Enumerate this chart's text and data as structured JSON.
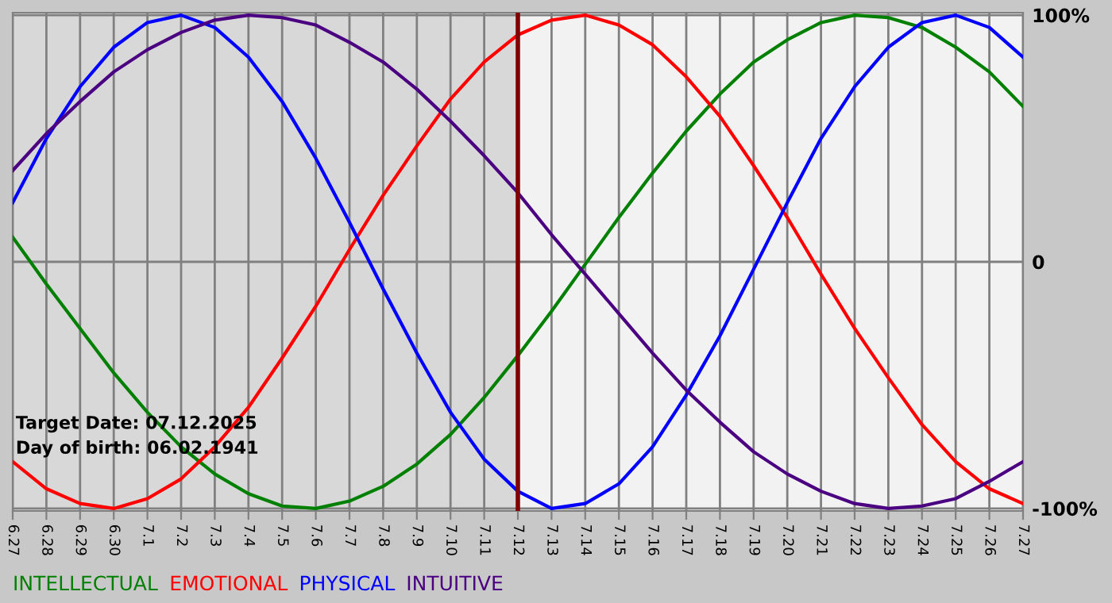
{
  "chart_data": {
    "type": "line",
    "categories": [
      "6.27",
      "6.28",
      "6.29",
      "6.30",
      "7.1",
      "7.2",
      "7.3",
      "7.4",
      "7.5",
      "7.6",
      "7.7",
      "7.8",
      "7.9",
      "7.10",
      "7.11",
      "7.12",
      "7.13",
      "7.14",
      "7.15",
      "7.16",
      "7.17",
      "7.18",
      "7.19",
      "7.20",
      "7.21",
      "7.22",
      "7.23",
      "7.24",
      "7.25",
      "7.26",
      "7.27"
    ],
    "series": [
      {
        "name": "INTELLECTUAL",
        "color": "#008000",
        "values": [
          10,
          -9,
          -27,
          -45,
          -61,
          -75,
          -86,
          -94,
          -99,
          -100,
          -97,
          -91,
          -82,
          -70,
          -55,
          -38,
          -20,
          -1,
          18,
          36,
          53,
          68,
          81,
          90,
          97,
          100,
          99,
          95,
          87,
          77,
          63
        ]
      },
      {
        "name": "EMOTIONAL",
        "color": "#ff0000",
        "values": [
          -81,
          -92,
          -98,
          -100,
          -96,
          -88,
          -75,
          -59,
          -39,
          -18,
          5,
          27,
          47,
          66,
          81,
          92,
          98,
          100,
          96,
          88,
          75,
          59,
          39,
          18,
          -5,
          -27,
          -47,
          -66,
          -81,
          -92,
          -98
        ]
      },
      {
        "name": "PHYSICAL",
        "color": "#0000ff",
        "values": [
          24,
          50,
          71,
          87,
          97,
          100,
          95,
          83,
          65,
          42,
          16,
          -11,
          -37,
          -61,
          -80,
          -93,
          -100,
          -98,
          -90,
          -75,
          -54,
          -30,
          -3,
          24,
          50,
          71,
          87,
          97,
          100,
          95,
          83
        ]
      },
      {
        "name": "INTUITIVE",
        "color": "#4b0082",
        "values": [
          37,
          52,
          65,
          77,
          86,
          93,
          98,
          100,
          99,
          96,
          89,
          81,
          70,
          57,
          43,
          28,
          11,
          -5,
          -21,
          -37,
          -52,
          -65,
          -77,
          -86,
          -93,
          -98,
          -100,
          -99,
          -96,
          -89,
          -81
        ]
      }
    ],
    "ylim": [
      -101,
      101
    ],
    "yticks": [
      {
        "value": 100,
        "label": "100%"
      },
      0,
      {
        "value": -100,
        "label": "-100%"
      }
    ],
    "grid": true,
    "legend": "bottom",
    "marker": "none",
    "line_style": "solid",
    "ref_lines": [
      {
        "axis": "x",
        "value": "7.12",
        "color": "#800000"
      }
    ],
    "bands": [
      {
        "axis": "x",
        "from": "6.27",
        "to": "7.12",
        "color": "#d8d8d8"
      }
    ],
    "annotations": [
      "Target Date: 07.12.2025",
      "Day of birth: 06.02.1941"
    ]
  }
}
